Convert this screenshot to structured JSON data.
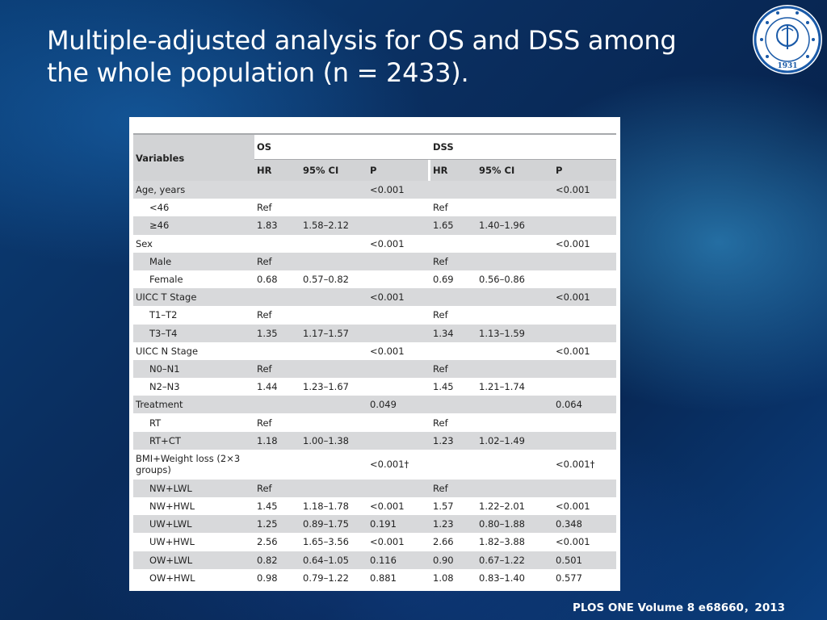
{
  "slide": {
    "title_line1": "Multiple-adjusted analysis for OS and DSS among",
    "title_line2": "the whole population (n = 2433).",
    "footer": "PLOS ONE Volume 8 e68660，2013",
    "logo": {
      "icon": "university-seal-icon",
      "year": "1931",
      "color": "#1a5aa8"
    }
  },
  "table": {
    "header_variables": "Variables",
    "group_os": "OS",
    "group_dss": "DSS",
    "sub_headers": [
      "HR",
      "95% CI",
      "P",
      "HR",
      "95% CI",
      "P"
    ],
    "rows": [
      {
        "label": "Age, years",
        "indent": false,
        "shade": true,
        "os_hr": "",
        "os_ci": "",
        "os_p": "<0.001",
        "dss_hr": "",
        "dss_ci": "",
        "dss_p": "<0.001"
      },
      {
        "label": "<46",
        "indent": true,
        "shade": false,
        "os_hr": "Ref",
        "os_ci": "",
        "os_p": "",
        "dss_hr": "Ref",
        "dss_ci": "",
        "dss_p": ""
      },
      {
        "label": "≥46",
        "indent": true,
        "shade": true,
        "os_hr": "1.83",
        "os_ci": "1.58–2.12",
        "os_p": "",
        "dss_hr": "1.65",
        "dss_ci": "1.40–1.96",
        "dss_p": ""
      },
      {
        "label": "Sex",
        "indent": false,
        "shade": false,
        "os_hr": "",
        "os_ci": "",
        "os_p": "<0.001",
        "dss_hr": "",
        "dss_ci": "",
        "dss_p": "<0.001"
      },
      {
        "label": "Male",
        "indent": true,
        "shade": true,
        "os_hr": "Ref",
        "os_ci": "",
        "os_p": "",
        "dss_hr": "Ref",
        "dss_ci": "",
        "dss_p": ""
      },
      {
        "label": "Female",
        "indent": true,
        "shade": false,
        "os_hr": "0.68",
        "os_ci": "0.57–0.82",
        "os_p": "",
        "dss_hr": "0.69",
        "dss_ci": "0.56–0.86",
        "dss_p": ""
      },
      {
        "label": "UICC T Stage",
        "indent": false,
        "shade": true,
        "os_hr": "",
        "os_ci": "",
        "os_p": "<0.001",
        "dss_hr": "",
        "dss_ci": "",
        "dss_p": "<0.001"
      },
      {
        "label": "T1–T2",
        "indent": true,
        "shade": false,
        "os_hr": "Ref",
        "os_ci": "",
        "os_p": "",
        "dss_hr": "Ref",
        "dss_ci": "",
        "dss_p": ""
      },
      {
        "label": "T3–T4",
        "indent": true,
        "shade": true,
        "os_hr": "1.35",
        "os_ci": "1.17–1.57",
        "os_p": "",
        "dss_hr": "1.34",
        "dss_ci": "1.13–1.59",
        "dss_p": ""
      },
      {
        "label": "UICC N Stage",
        "indent": false,
        "shade": false,
        "os_hr": "",
        "os_ci": "",
        "os_p": "<0.001",
        "dss_hr": "",
        "dss_ci": "",
        "dss_p": "<0.001"
      },
      {
        "label": "N0–N1",
        "indent": true,
        "shade": true,
        "os_hr": "Ref",
        "os_ci": "",
        "os_p": "",
        "dss_hr": "Ref",
        "dss_ci": "",
        "dss_p": ""
      },
      {
        "label": "N2–N3",
        "indent": true,
        "shade": false,
        "os_hr": "1.44",
        "os_ci": "1.23–1.67",
        "os_p": "",
        "dss_hr": "1.45",
        "dss_ci": "1.21–1.74",
        "dss_p": ""
      },
      {
        "label": "Treatment",
        "indent": false,
        "shade": true,
        "os_hr": "",
        "os_ci": "",
        "os_p": "0.049",
        "dss_hr": "",
        "dss_ci": "",
        "dss_p": "0.064"
      },
      {
        "label": "RT",
        "indent": true,
        "shade": false,
        "os_hr": "Ref",
        "os_ci": "",
        "os_p": "",
        "dss_hr": "Ref",
        "dss_ci": "",
        "dss_p": ""
      },
      {
        "label": "RT+CT",
        "indent": true,
        "shade": true,
        "os_hr": "1.18",
        "os_ci": "1.00–1.38",
        "os_p": "",
        "dss_hr": "1.23",
        "dss_ci": "1.02–1.49",
        "dss_p": ""
      },
      {
        "label": "BMI+Weight loss (2×3 groups)",
        "indent": false,
        "shade": false,
        "tall": true,
        "os_hr": "",
        "os_ci": "",
        "os_p": "<0.001†",
        "dss_hr": "",
        "dss_ci": "",
        "dss_p": "<0.001†"
      },
      {
        "label": "NW+LWL",
        "indent": true,
        "shade": true,
        "os_hr": "Ref",
        "os_ci": "",
        "os_p": "",
        "dss_hr": "Ref",
        "dss_ci": "",
        "dss_p": ""
      },
      {
        "label": "NW+HWL",
        "indent": true,
        "shade": false,
        "os_hr": "1.45",
        "os_ci": "1.18–1.78",
        "os_p": "<0.001",
        "dss_hr": "1.57",
        "dss_ci": "1.22–2.01",
        "dss_p": "<0.001"
      },
      {
        "label": "UW+LWL",
        "indent": true,
        "shade": true,
        "os_hr": "1.25",
        "os_ci": "0.89–1.75",
        "os_p": "0.191",
        "dss_hr": "1.23",
        "dss_ci": "0.80–1.88",
        "dss_p": "0.348"
      },
      {
        "label": "UW+HWL",
        "indent": true,
        "shade": false,
        "os_hr": "2.56",
        "os_ci": "1.65–3.56",
        "os_p": "<0.001",
        "dss_hr": "2.66",
        "dss_ci": "1.82–3.88",
        "dss_p": "<0.001"
      },
      {
        "label": "OW+LWL",
        "indent": true,
        "shade": true,
        "os_hr": "0.82",
        "os_ci": "0.64–1.05",
        "os_p": "0.116",
        "dss_hr": "0.90",
        "dss_ci": "0.67–1.22",
        "dss_p": "0.501"
      },
      {
        "label": "OW+HWL",
        "indent": true,
        "shade": false,
        "os_hr": "0.98",
        "os_ci": "0.79–1.22",
        "os_p": "0.881",
        "dss_hr": "1.08",
        "dss_ci": "0.83–1.40",
        "dss_p": "0.577"
      }
    ]
  }
}
